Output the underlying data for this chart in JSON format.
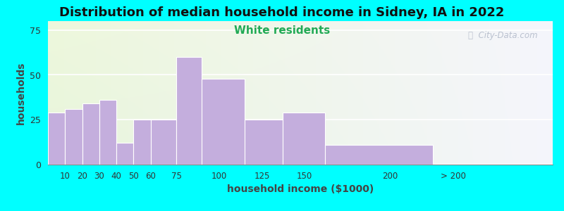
{
  "title": "Distribution of median household income in Sidney, IA in 2022",
  "subtitle": "White residents",
  "xlabel": "household income ($1000)",
  "ylabel": "households",
  "title_fontsize": 13,
  "subtitle_fontsize": 11,
  "subtitle_color": "#22aa55",
  "background_outer": "#00ffff",
  "bar_color": "#c4aedd",
  "bar_edgecolor": "#ffffff",
  "ylim": [
    0,
    80
  ],
  "yticks": [
    0,
    25,
    50,
    75
  ],
  "watermark": "ⓘ  City-Data.com",
  "bin_lefts": [
    0,
    10,
    20,
    30,
    40,
    50,
    60,
    75,
    90,
    115,
    137,
    162,
    225
  ],
  "bin_rights": [
    10,
    20,
    30,
    40,
    50,
    60,
    75,
    90,
    115,
    137,
    162,
    225,
    290
  ],
  "values": [
    29,
    31,
    34,
    36,
    12,
    25,
    25,
    60,
    48,
    25,
    29,
    11,
    0
  ],
  "xtick_positions": [
    10,
    20,
    30,
    40,
    50,
    60,
    75,
    100,
    125,
    150,
    200,
    237
  ],
  "xtick_labels": [
    "10",
    "20",
    "30",
    "40",
    "50",
    "60",
    "75",
    "100",
    "125",
    "150",
    "200",
    "> 200"
  ]
}
